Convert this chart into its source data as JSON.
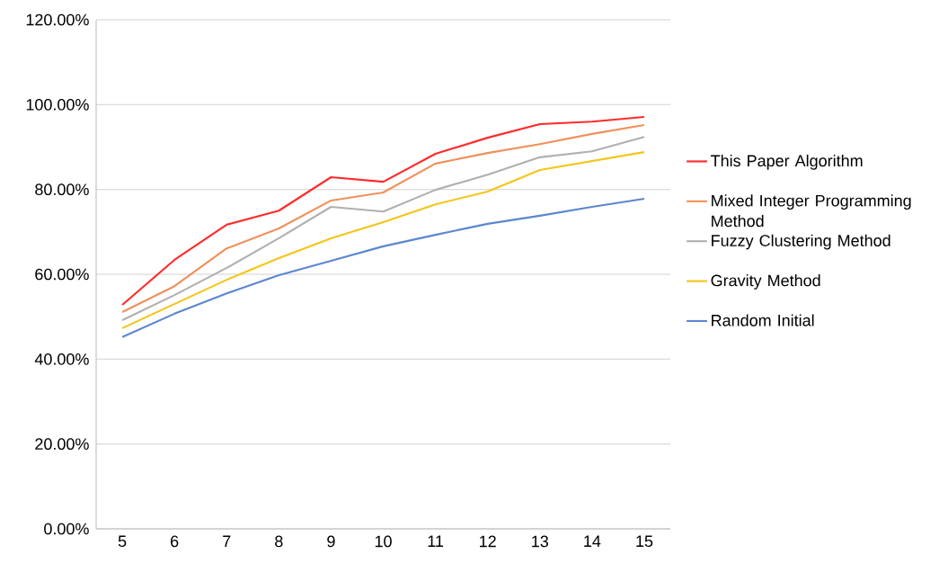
{
  "chart_data": {
    "type": "line",
    "categories": [
      "5",
      "6",
      "7",
      "8",
      "9",
      "10",
      "11",
      "12",
      "13",
      "14",
      "15"
    ],
    "series": [
      {
        "name": "This Paper Algorithm",
        "color": "#ff2a2a",
        "values": [
          52.8,
          63.4,
          71.7,
          75.0,
          82.9,
          81.8,
          88.4,
          92.2,
          95.4,
          96.0,
          97.1
        ]
      },
      {
        "name": "Mixed Integer Programming Method",
        "color": "#f0905a",
        "values": [
          51.1,
          57.2,
          66.1,
          70.8,
          77.4,
          79.3,
          86.1,
          88.6,
          90.7,
          93.1,
          95.2
        ]
      },
      {
        "name": "Fuzzy Clustering Method",
        "color": "#b0b0b0",
        "values": [
          49.2,
          55.1,
          61.5,
          68.5,
          75.9,
          74.8,
          79.9,
          83.5,
          87.6,
          89.0,
          92.4
        ]
      },
      {
        "name": "Gravity Method",
        "color": "#f5c518",
        "values": [
          47.3,
          53.0,
          58.7,
          63.8,
          68.5,
          72.3,
          76.5,
          79.5,
          84.6,
          86.7,
          88.8
        ]
      },
      {
        "name": "Random Initial",
        "color": "#5b86d0",
        "values": [
          45.2,
          50.7,
          55.5,
          59.8,
          63.2,
          66.6,
          69.3,
          71.9,
          73.8,
          75.9,
          77.8
        ]
      }
    ],
    "ylim": [
      0,
      120
    ],
    "yticks": [
      {
        "value": 0,
        "label": "0.00%"
      },
      {
        "value": 20,
        "label": "20.00%"
      },
      {
        "value": 40,
        "label": "40.00%"
      },
      {
        "value": 60,
        "label": "60.00%"
      },
      {
        "value": 80,
        "label": "80.00%"
      },
      {
        "value": 100,
        "label": "100.00%"
      },
      {
        "value": 120,
        "label": "120.00%"
      }
    ],
    "grid": "y",
    "legend": "right",
    "marker": "none",
    "line_style": "solid"
  }
}
